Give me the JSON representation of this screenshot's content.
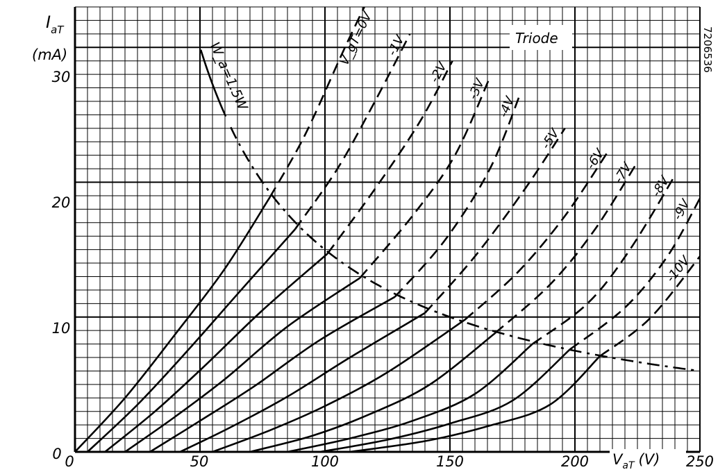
{
  "chart_data": {
    "type": "line",
    "title": "Triode",
    "xlabel": "V_aT (V)",
    "ylabel": "I_aT (mA)",
    "x_axis_label_main": "V",
    "x_axis_label_sub": "aT",
    "x_axis_label_unit": "(V)",
    "y_axis_label_main": "I",
    "y_axis_label_sub": "aT",
    "y_axis_label_unit": "(mA)",
    "xlim": [
      0,
      250
    ],
    "ylim": [
      0,
      33
    ],
    "x_ticks": [
      "0",
      "50",
      "100",
      "150",
      "200",
      "250"
    ],
    "y_ticks": [
      "0",
      "10",
      "20",
      "30"
    ],
    "grid": true,
    "figure_code": "7206536",
    "series": [
      {
        "name": "V_gT=0V",
        "label": "V_gT=0V",
        "points": [
          [
            0,
            0
          ],
          [
            20,
            4
          ],
          [
            40,
            8.7
          ],
          [
            60,
            13.6
          ],
          [
            78,
            18.9
          ]
        ],
        "points_dashed": [
          [
            78,
            18.9
          ],
          [
            92,
            23.5
          ],
          [
            108,
            30
          ],
          [
            121,
            35
          ]
        ],
        "ends": [
          121,
          35
        ]
      },
      {
        "name": "-1V",
        "label": "-1V",
        "points": [
          [
            5,
            0
          ],
          [
            25,
            3.5
          ],
          [
            45,
            7.5
          ],
          [
            65,
            11.7
          ],
          [
            88,
            16.5
          ]
        ],
        "points_dashed": [
          [
            88,
            16.5
          ],
          [
            105,
            21
          ],
          [
            120,
            26
          ],
          [
            134,
            31
          ]
        ],
        "ends": [
          134,
          31
        ]
      },
      {
        "name": "-2V",
        "label": "-2V",
        "points": [
          [
            12,
            0
          ],
          [
            32,
            3
          ],
          [
            52,
            6.4
          ],
          [
            75,
            10.5
          ],
          [
            101,
            14.7
          ]
        ],
        "points_dashed": [
          [
            101,
            14.7
          ],
          [
            120,
            19.5
          ],
          [
            138,
            24.5
          ],
          [
            151,
            29
          ]
        ],
        "ends": [
          151,
          29
        ]
      },
      {
        "name": "-3V",
        "label": "-3V",
        "points": [
          [
            20,
            0
          ],
          [
            40,
            2.6
          ],
          [
            60,
            5.4
          ],
          [
            85,
            9.3
          ],
          [
            114,
            12.9
          ]
        ],
        "points_dashed": [
          [
            114,
            12.9
          ],
          [
            135,
            17.5
          ],
          [
            152,
            22
          ],
          [
            166,
            27.8
          ]
        ],
        "ends": [
          166,
          27.8
        ]
      },
      {
        "name": "-4V",
        "label": "-4V",
        "points": [
          [
            30,
            0
          ],
          [
            50,
            2.3
          ],
          [
            72,
            4.9
          ],
          [
            98,
            8.3
          ],
          [
            128,
            11.5
          ]
        ],
        "points_dashed": [
          [
            128,
            11.5
          ],
          [
            148,
            15.7
          ],
          [
            166,
            21
          ],
          [
            178,
            26.5
          ]
        ],
        "ends": [
          178,
          26.5
        ]
      },
      {
        "name": "-5V",
        "label": "-5V",
        "points": [
          [
            42,
            0
          ],
          [
            62,
            1.8
          ],
          [
            85,
            4.1
          ],
          [
            110,
            7
          ],
          [
            140,
            10.3
          ]
        ],
        "points_dashed": [
          [
            140,
            10.3
          ],
          [
            160,
            14.5
          ],
          [
            180,
            19.5
          ],
          [
            196,
            24
          ]
        ],
        "ends": [
          196,
          24
        ]
      },
      {
        "name": "-6V",
        "label": "-6V",
        "points": [
          [
            55,
            0
          ],
          [
            78,
            1.6
          ],
          [
            100,
            3.4
          ],
          [
            125,
            5.9
          ],
          [
            156,
            9.8
          ]
        ],
        "points_dashed": [
          [
            156,
            9.8
          ],
          [
            177,
            13.3
          ],
          [
            196,
            17.5
          ],
          [
            214,
            22.5
          ]
        ],
        "ends": [
          214,
          22.5
        ]
      },
      {
        "name": "-7V",
        "label": "-7V",
        "points": [
          [
            70,
            0
          ],
          [
            95,
            1.2
          ],
          [
            118,
            2.8
          ],
          [
            142,
            5
          ],
          [
            168,
            8.8
          ]
        ],
        "points_dashed": [
          [
            168,
            8.8
          ],
          [
            190,
            12.4
          ],
          [
            208,
            16.5
          ],
          [
            225,
            21.5
          ]
        ],
        "ends": [
          225,
          21.5
        ]
      },
      {
        "name": "-8V",
        "label": "-8V",
        "points": [
          [
            85,
            0
          ],
          [
            110,
            1
          ],
          [
            135,
            2.3
          ],
          [
            160,
            4.3
          ],
          [
            183,
            8
          ]
        ],
        "points_dashed": [
          [
            183,
            8
          ],
          [
            205,
            11
          ],
          [
            222,
            15
          ],
          [
            240,
            20.5
          ]
        ],
        "ends": [
          240,
          20.5
        ]
      },
      {
        "name": "-9V",
        "label": "-9V",
        "points": [
          [
            98,
            0
          ],
          [
            125,
            0.9
          ],
          [
            150,
            2.1
          ],
          [
            175,
            3.8
          ],
          [
            198,
            7.6
          ]
        ],
        "points_dashed": [
          [
            198,
            7.6
          ],
          [
            220,
            10.7
          ],
          [
            237,
            14.5
          ],
          [
            250,
            18.8
          ]
        ],
        "ends": [
          250,
          18.8
        ]
      },
      {
        "name": "-10V",
        "label": "-10V",
        "points": [
          [
            110,
            0
          ],
          [
            140,
            0.8
          ],
          [
            165,
            1.9
          ],
          [
            190,
            3.5
          ],
          [
            210,
            7.1
          ]
        ],
        "points_dashed": [
          [
            210,
            7.1
          ],
          [
            230,
            9.9
          ],
          [
            250,
            14.5
          ]
        ],
        "ends": [
          250,
          14.5
        ]
      }
    ],
    "power_limit": {
      "name": "W_a=1.5W",
      "label": "W_a=1.5W",
      "watts": 1.5,
      "x_start": 50,
      "x_end": 250
    }
  }
}
